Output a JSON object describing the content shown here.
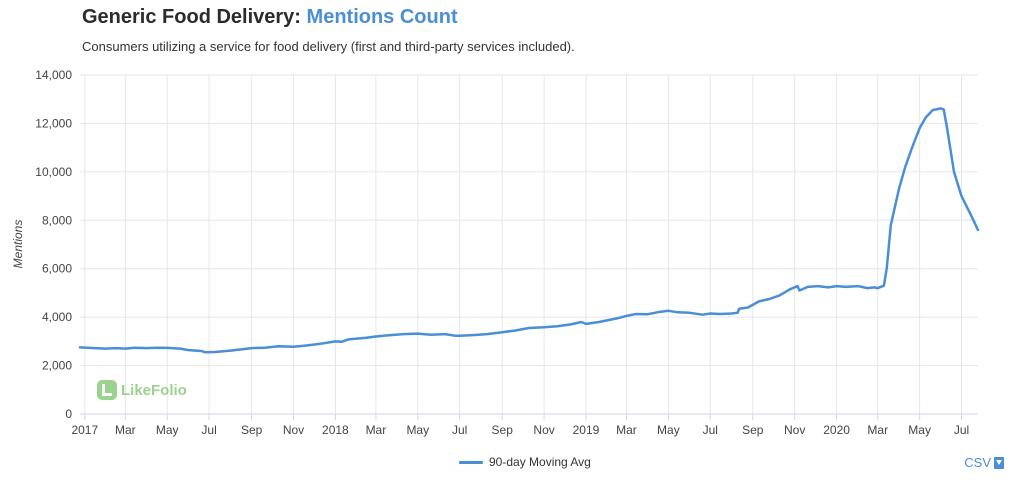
{
  "header": {
    "title_main": "Generic Food Delivery:",
    "title_accent": "Mentions Count",
    "subtitle": "Consumers utilizing a service for food delivery (first and third-party services included)."
  },
  "logo": {
    "text": "LikeFolio"
  },
  "csv_label": "CSV",
  "colors": {
    "line": "#4a8fd6",
    "accent": "#4a8fd6",
    "grid": "#e6e6e6",
    "logo": "#7cc36a"
  },
  "icons": {
    "logo": "likefolio-logo-icon",
    "download": "download-icon"
  },
  "chart_data": {
    "type": "line",
    "title": "Mentions Count",
    "ylabel": "Mentions",
    "xlabel": "",
    "ylim": [
      0,
      14000
    ],
    "yticks": [
      0,
      2000,
      4000,
      6000,
      8000,
      10000,
      12000,
      14000
    ],
    "ytick_labels": [
      "0",
      "2,000",
      "4,000",
      "6,000",
      "8,000",
      "10,000",
      "12,000",
      "14,000"
    ],
    "xlim": [
      "2016-12-25",
      "2020-07-25"
    ],
    "xticks": [
      {
        "date": "2017-01-01",
        "label": "2017"
      },
      {
        "date": "2017-03-01",
        "label": "Mar"
      },
      {
        "date": "2017-05-01",
        "label": "May"
      },
      {
        "date": "2017-07-01",
        "label": "Jul"
      },
      {
        "date": "2017-09-01",
        "label": "Sep"
      },
      {
        "date": "2017-11-01",
        "label": "Nov"
      },
      {
        "date": "2018-01-01",
        "label": "2018"
      },
      {
        "date": "2018-03-01",
        "label": "Mar"
      },
      {
        "date": "2018-05-01",
        "label": "May"
      },
      {
        "date": "2018-07-01",
        "label": "Jul"
      },
      {
        "date": "2018-09-01",
        "label": "Sep"
      },
      {
        "date": "2018-11-01",
        "label": "Nov"
      },
      {
        "date": "2019-01-01",
        "label": "2019"
      },
      {
        "date": "2019-03-01",
        "label": "Mar"
      },
      {
        "date": "2019-05-01",
        "label": "May"
      },
      {
        "date": "2019-07-01",
        "label": "Jul"
      },
      {
        "date": "2019-09-01",
        "label": "Sep"
      },
      {
        "date": "2019-11-01",
        "label": "Nov"
      },
      {
        "date": "2020-01-01",
        "label": "2020"
      },
      {
        "date": "2020-03-01",
        "label": "Mar"
      },
      {
        "date": "2020-05-01",
        "label": "May"
      },
      {
        "date": "2020-07-01",
        "label": "Jul"
      }
    ],
    "grid": true,
    "legend_position": "bottom-center",
    "series": [
      {
        "name": "90-day Moving Avg",
        "color": "#4a8fd6",
        "points": [
          [
            "2016-12-25",
            2750
          ],
          [
            "2017-01-15",
            2720
          ],
          [
            "2017-02-01",
            2700
          ],
          [
            "2017-02-15",
            2720
          ],
          [
            "2017-03-01",
            2700
          ],
          [
            "2017-03-15",
            2740
          ],
          [
            "2017-04-01",
            2720
          ],
          [
            "2017-04-15",
            2740
          ],
          [
            "2017-05-01",
            2730
          ],
          [
            "2017-05-20",
            2700
          ],
          [
            "2017-06-01",
            2640
          ],
          [
            "2017-06-20",
            2600
          ],
          [
            "2017-06-25",
            2550
          ],
          [
            "2017-07-10",
            2560
          ],
          [
            "2017-08-01",
            2620
          ],
          [
            "2017-08-20",
            2680
          ],
          [
            "2017-09-01",
            2720
          ],
          [
            "2017-09-20",
            2740
          ],
          [
            "2017-10-10",
            2800
          ],
          [
            "2017-11-01",
            2780
          ],
          [
            "2017-11-20",
            2830
          ],
          [
            "2017-12-10",
            2900
          ],
          [
            "2018-01-01",
            3000
          ],
          [
            "2018-01-10",
            2980
          ],
          [
            "2018-01-20",
            3080
          ],
          [
            "2018-02-15",
            3150
          ],
          [
            "2018-03-01",
            3200
          ],
          [
            "2018-03-20",
            3250
          ],
          [
            "2018-04-10",
            3300
          ],
          [
            "2018-05-01",
            3320
          ],
          [
            "2018-05-20",
            3270
          ],
          [
            "2018-06-10",
            3300
          ],
          [
            "2018-06-25",
            3230
          ],
          [
            "2018-07-01",
            3230
          ],
          [
            "2018-07-20",
            3260
          ],
          [
            "2018-08-10",
            3300
          ],
          [
            "2018-09-01",
            3380
          ],
          [
            "2018-09-20",
            3450
          ],
          [
            "2018-10-10",
            3550
          ],
          [
            "2018-11-01",
            3580
          ],
          [
            "2018-11-20",
            3620
          ],
          [
            "2018-12-10",
            3700
          ],
          [
            "2018-12-25",
            3800
          ],
          [
            "2019-01-01",
            3720
          ],
          [
            "2019-01-20",
            3800
          ],
          [
            "2019-02-15",
            3950
          ],
          [
            "2019-03-01",
            4050
          ],
          [
            "2019-03-15",
            4130
          ],
          [
            "2019-04-01",
            4120
          ],
          [
            "2019-04-15",
            4200
          ],
          [
            "2019-05-01",
            4260
          ],
          [
            "2019-05-15",
            4200
          ],
          [
            "2019-06-01",
            4180
          ],
          [
            "2019-06-20",
            4100
          ],
          [
            "2019-07-01",
            4150
          ],
          [
            "2019-07-15",
            4130
          ],
          [
            "2019-08-01",
            4150
          ],
          [
            "2019-08-10",
            4180
          ],
          [
            "2019-08-12",
            4350
          ],
          [
            "2019-08-25",
            4400
          ],
          [
            "2019-09-10",
            4650
          ],
          [
            "2019-09-25",
            4750
          ],
          [
            "2019-10-10",
            4900
          ],
          [
            "2019-10-25",
            5150
          ],
          [
            "2019-11-05",
            5280
          ],
          [
            "2019-11-08",
            5100
          ],
          [
            "2019-11-20",
            5250
          ],
          [
            "2019-12-05",
            5280
          ],
          [
            "2019-12-20",
            5230
          ],
          [
            "2020-01-01",
            5280
          ],
          [
            "2020-01-15",
            5250
          ],
          [
            "2020-02-01",
            5280
          ],
          [
            "2020-02-15",
            5200
          ],
          [
            "2020-02-25",
            5230
          ],
          [
            "2020-03-01",
            5200
          ],
          [
            "2020-03-10",
            5300
          ],
          [
            "2020-03-14",
            6000
          ],
          [
            "2020-03-20",
            7800
          ],
          [
            "2020-04-01",
            9300
          ],
          [
            "2020-04-10",
            10200
          ],
          [
            "2020-04-20",
            11000
          ],
          [
            "2020-05-01",
            11800
          ],
          [
            "2020-05-10",
            12250
          ],
          [
            "2020-05-20",
            12550
          ],
          [
            "2020-06-01",
            12620
          ],
          [
            "2020-06-05",
            12580
          ],
          [
            "2020-06-10",
            11800
          ],
          [
            "2020-06-20",
            10000
          ],
          [
            "2020-07-01",
            9000
          ],
          [
            "2020-07-15",
            8200
          ],
          [
            "2020-07-25",
            7600
          ]
        ]
      }
    ]
  }
}
